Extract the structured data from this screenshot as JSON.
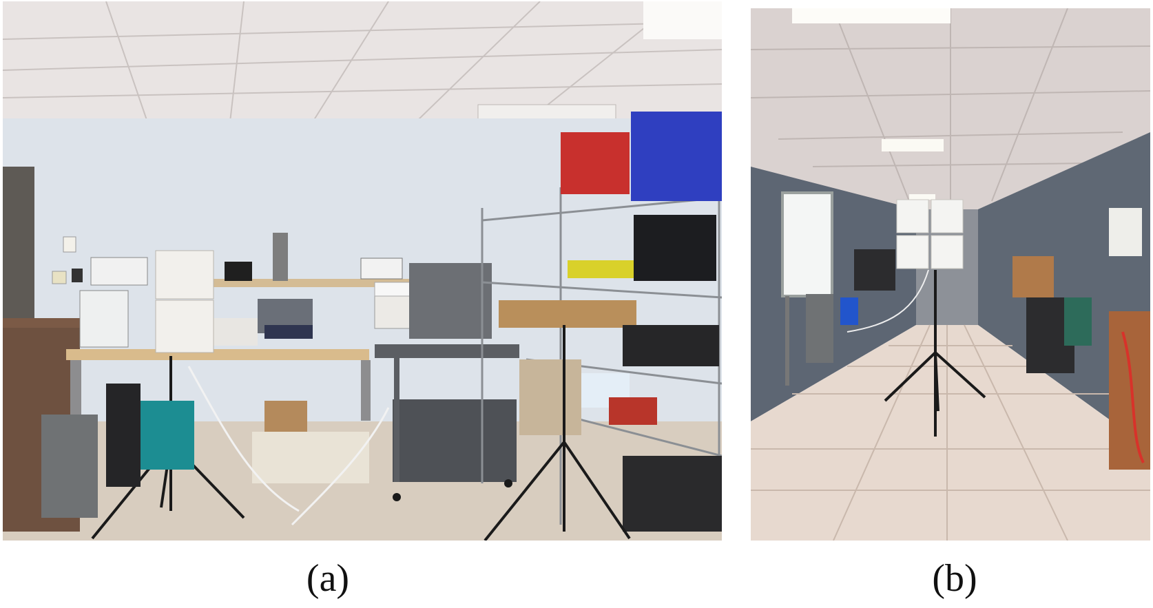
{
  "figure": {
    "panels": [
      {
        "caption": "(a)",
        "scene": "lab-room-with-antenna-tripods",
        "colors": {
          "ceiling": "#e9e4e3",
          "wall": "#dde3ea",
          "floor": "#d8cdbf",
          "bench": "#d9bb8c",
          "shelf": "#7e8287",
          "red_bin": "#c8302d",
          "blue_bin": "#2f3fc0",
          "teal_bin": "#1c8d92",
          "antenna": "#f2f0ec"
        }
      },
      {
        "caption": "(b)",
        "scene": "hallway-with-antenna-array-tripod",
        "colors": {
          "ceiling": "#dad2d0",
          "wall": "#5d6673",
          "floor": "#e7d9cf",
          "floor_grid": "#c9b8ac",
          "whiteboard": "#f4f6f5",
          "antenna": "#f4f4f2",
          "chairs": "#2c2c2e",
          "bins": "#c8682a"
        }
      }
    ]
  }
}
